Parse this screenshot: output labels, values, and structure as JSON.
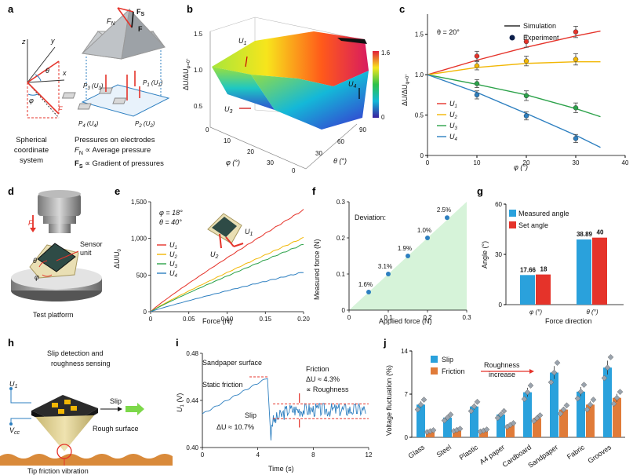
{
  "panel_labels": {
    "a": "a",
    "b": "b",
    "c": "c",
    "d": "d",
    "e": "e",
    "f": "f",
    "g": "g",
    "h": "h",
    "i": "i",
    "j": "j"
  },
  "colors": {
    "red": "#e5332a",
    "yellow": "#f2b705",
    "green": "#2ca24a",
    "blue": "#2d7fc0",
    "slip_blue": "#2aa1dc",
    "friction_orange": "#e07b39",
    "set_red": "#e5332a"
  },
  "panel_a": {
    "axis_z": "z",
    "axis_y": "y",
    "axis_x": "x",
    "theta": "θ",
    "phi": "φ",
    "force": "F",
    "fs": "F",
    "fs_sub": "S",
    "fn": "F",
    "fn_sub": "N",
    "f_bold": "F",
    "p3": "P",
    "p3_sub": "3",
    "p3_u": "(U",
    "p3_usub": "3",
    "p1": "P",
    "p1_sub": "1",
    "p1_u": "(U",
    "p1_usub": "1",
    "p4": "P",
    "p4_sub": "4",
    "p4_u": "(U",
    "p4_usub": "4",
    "p2": "P",
    "p2_sub": "2",
    "p2_u": "(U",
    "p2_usub": "2",
    "caption_left": [
      "Spherical",
      "coordinate",
      "system"
    ],
    "caption_right_1": "Pressures on electrodes",
    "caption_right_2": "F",
    "caption_right_2_sub": "N",
    "caption_right_2_rest": " ∝ Average pressure",
    "caption_right_3": "F",
    "caption_right_3_sub": "S",
    "caption_right_3_rest": " ∝ Gradient of pressures"
  },
  "panel_b": {
    "zlabel": "ΔU/ΔU",
    "zlabel_sub": "φ=0°",
    "ztick_top": "1.5",
    "ztick_1": "1.0",
    "ztick_05": "0.5",
    "xlabel": "φ (°)",
    "x_ticks": [
      "0",
      "10",
      "20",
      "30"
    ],
    "ylabel": "θ (°)",
    "y_ticks": [
      "0",
      "30",
      "60",
      "90"
    ],
    "u1": "U",
    "u1_sub": "1",
    "u3": "U",
    "u3_sub": "3",
    "u4": "U",
    "u4_sub": "4",
    "cbar_max": "1.6",
    "cbar_min": "0"
  },
  "chart_data": [
    {
      "id": "c",
      "type": "line",
      "title": "θ = 20°",
      "xlabel": "φ (°)",
      "ylabel": "ΔU/ΔU",
      "ylabel_sub": "φ=0°",
      "xlim": [
        0,
        40
      ],
      "ylim": [
        0,
        1.75
      ],
      "x_ticks": [
        "0",
        "10",
        "20",
        "30",
        "40"
      ],
      "y_ticks": [
        "0",
        "0.5",
        "1.0",
        "1.5"
      ],
      "legend_lines": [
        "Simulation",
        "Experiment"
      ],
      "series": [
        {
          "name": "U1",
          "color": "#e5332a",
          "sim": [
            [
              0,
              1.0
            ],
            [
              10,
              1.18
            ],
            [
              20,
              1.34
            ],
            [
              30,
              1.48
            ],
            [
              35,
              1.54
            ]
          ],
          "exp": [
            [
              10,
              1.23
            ],
            [
              20,
              1.41
            ],
            [
              30,
              1.53
            ]
          ],
          "err": [
            0.06,
            0.07,
            0.07
          ]
        },
        {
          "name": "U2",
          "color": "#f2b705",
          "sim": [
            [
              0,
              1.0
            ],
            [
              10,
              1.09
            ],
            [
              20,
              1.14
            ],
            [
              30,
              1.16
            ],
            [
              35,
              1.16
            ]
          ],
          "exp": [
            [
              10,
              1.11
            ],
            [
              20,
              1.17
            ],
            [
              30,
              1.19
            ]
          ],
          "err": [
            0.05,
            0.06,
            0.07
          ]
        },
        {
          "name": "U3",
          "color": "#2ca24a",
          "sim": [
            [
              0,
              1.0
            ],
            [
              10,
              0.88
            ],
            [
              20,
              0.75
            ],
            [
              30,
              0.58
            ],
            [
              35,
              0.48
            ]
          ],
          "exp": [
            [
              10,
              0.89
            ],
            [
              20,
              0.74
            ],
            [
              30,
              0.59
            ]
          ],
          "err": [
            0.05,
            0.06,
            0.06
          ]
        },
        {
          "name": "U4",
          "color": "#2d7fc0",
          "sim": [
            [
              0,
              1.0
            ],
            [
              10,
              0.78
            ],
            [
              20,
              0.52
            ],
            [
              30,
              0.25
            ],
            [
              35,
              0.1
            ]
          ],
          "exp": [
            [
              10,
              0.75
            ],
            [
              20,
              0.49
            ],
            [
              30,
              0.21
            ]
          ],
          "err": [
            0.05,
            0.05,
            0.05
          ]
        }
      ]
    },
    {
      "id": "e",
      "type": "line",
      "xlabel": "Force (N)",
      "ylabel": "ΔU/U",
      "ylabel_sub": "0",
      "xlim": [
        0,
        0.2
      ],
      "ylim": [
        0,
        1500
      ],
      "x_ticks": [
        "0",
        "0.05",
        "0.10",
        "0.15",
        "0.20"
      ],
      "y_ticks": [
        "0",
        "500",
        "1,000",
        "1,500"
      ],
      "annotation_1": "φ = 18°",
      "annotation_2": "θ = 40°",
      "series": [
        {
          "name": "U1",
          "color": "#e5332a",
          "end": 1390
        },
        {
          "name": "U2",
          "color": "#f2b705",
          "end": 1010
        },
        {
          "name": "U3",
          "color": "#2ca24a",
          "end": 920
        },
        {
          "name": "U4",
          "color": "#2d7fc0",
          "end": 540
        }
      ],
      "device_u1": "U",
      "device_u1_sub": "1",
      "device_u2": "U",
      "device_u2_sub": "2"
    },
    {
      "id": "f",
      "type": "scatter",
      "xlabel": "Applied force (N)",
      "ylabel": "Measured force (N)",
      "xlim": [
        0,
        0.3
      ],
      "ylim": [
        0,
        0.3
      ],
      "x_ticks": [
        "0",
        "0.1",
        "0.2",
        "0.3"
      ],
      "y_ticks": [
        "0",
        "0.1",
        "0.2",
        "0.3"
      ],
      "deviation_label": "Deviation:",
      "points": [
        [
          0.05,
          0.05
        ],
        [
          0.1,
          0.1
        ],
        [
          0.15,
          0.15
        ],
        [
          0.2,
          0.2
        ],
        [
          0.25,
          0.256
        ]
      ],
      "point_labels": [
        "1.6%",
        "3.1%",
        "1.9%",
        "1.0%",
        "2.5%"
      ]
    },
    {
      "id": "g",
      "type": "bar",
      "xlabel": "Force direction",
      "ylabel": "Angle (°)",
      "ylim": [
        0,
        60
      ],
      "y_ticks": [
        "0",
        "30",
        "60"
      ],
      "categories": [
        "φ (°)",
        "θ (°)"
      ],
      "series": [
        {
          "name": "Measured angle",
          "color": "#2aa1dc",
          "values": [
            17.66,
            38.89
          ],
          "labels": [
            "17.66",
            "38.89"
          ]
        },
        {
          "name": "Set angle",
          "color": "#e5332a",
          "values": [
            18,
            40
          ],
          "labels": [
            "18",
            "40"
          ]
        }
      ]
    },
    {
      "id": "i",
      "type": "line",
      "xlabel": "Time (s)",
      "ylabel": "U",
      "ylabel_sub": "1",
      "ylabel_unit": " (V)",
      "xlim": [
        0,
        12
      ],
      "ylim": [
        0.4,
        0.48
      ],
      "x_ticks": [
        "0",
        "4",
        "8",
        "12"
      ],
      "y_ticks": [
        "0.40",
        "0.44",
        "0.48"
      ],
      "texts": {
        "surface": "Sandpaper surface",
        "static": "Static friction",
        "slip": "Slip",
        "slip_du": "ΔU ≈ 10.7%",
        "friction": "Friction",
        "friction_du": "ΔU ≈ 4.3%",
        "roughness": "∝ Roughness"
      }
    },
    {
      "id": "j",
      "type": "bar",
      "ylabel": "Voltage fluctuation (%)",
      "ylim": [
        0,
        14
      ],
      "y_ticks": [
        "0",
        "7",
        "14"
      ],
      "categories": [
        "Glass",
        "Steel",
        "Plastic",
        "A4 paper",
        "Cardboard",
        "Sandpaper",
        "Fabric",
        "Grooves"
      ],
      "annotation": "Roughness",
      "annotation_2": "increase",
      "series": [
        {
          "name": "Slip",
          "color": "#2aa1dc",
          "values": [
            5.3,
            3.2,
            5.0,
            3.7,
            7.3,
            10.5,
            7.4,
            11.3
          ]
        },
        {
          "name": "Friction",
          "color": "#e07b39",
          "values": [
            1.0,
            1.2,
            1.1,
            2.0,
            3.1,
            4.5,
            5.3,
            6.4
          ]
        }
      ]
    }
  ],
  "panel_d": {
    "sensor": "Sensor",
    "unit": "unit",
    "force": "F",
    "theta": "θ",
    "phi": "φ",
    "caption": "Test platform"
  },
  "panel_h": {
    "title_1": "Slip detection and",
    "title_2": "roughness sensing",
    "u1": "U",
    "u1_sub": "1",
    "vcc": "V",
    "vcc_sub": "cc",
    "slip": "Slip",
    "rough": "Rough surface",
    "caption": "Tip friction vibration"
  }
}
